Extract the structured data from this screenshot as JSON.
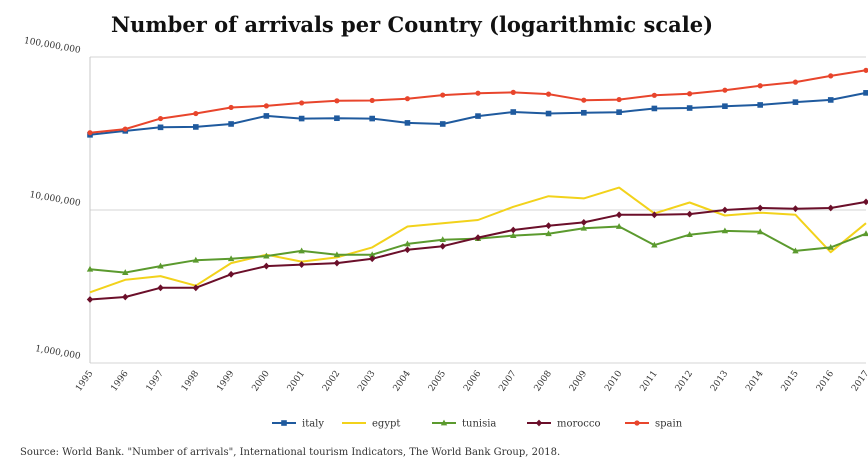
{
  "chart_data": {
    "type": "line",
    "title": "Number of arrivals per Country (logarithmic scale)",
    "source": "Source: World Bank. \"Number of arrivals\", International tourism Indicators, The World Bank Group, 2018.",
    "y_scale": "log",
    "ylim": [
      1000000,
      100000000
    ],
    "yticks": [
      {
        "value": 100000000,
        "label": "100,000,000"
      },
      {
        "value": 10000000,
        "label": "10,000,000"
      },
      {
        "value": 1000000,
        "label": "1,000,000"
      }
    ],
    "x": [
      "1995",
      "1996",
      "1997",
      "1998",
      "1999",
      "2000",
      "2001",
      "2002",
      "2003",
      "2004",
      "2005",
      "2006",
      "2007",
      "2008",
      "2009",
      "2010",
      "2011",
      "2012",
      "2013",
      "2014",
      "2015",
      "2016",
      "2017"
    ],
    "grid": "horizontal",
    "legend_position": "bottom",
    "series": [
      {
        "name": "italy",
        "color": "#1f5a9e",
        "marker": "square",
        "values": [
          31000000,
          32900000,
          34700000,
          34900000,
          36500000,
          41200000,
          39600000,
          39800000,
          39600000,
          37100000,
          36500000,
          41100000,
          43700000,
          42700000,
          43200000,
          43600000,
          46100000,
          46400000,
          47700000,
          48600000,
          50700000,
          52400000,
          58300000
        ]
      },
      {
        "name": "egypt",
        "color": "#f2d21b",
        "marker": "none",
        "values": [
          2900000,
          3500000,
          3700000,
          3200000,
          4500000,
          5100000,
          4600000,
          4900000,
          5700000,
          7800000,
          8200000,
          8600000,
          10500000,
          12300000,
          11900000,
          14000000,
          9500000,
          11200000,
          9200000,
          9600000,
          9300000,
          5300000,
          8200000
        ]
      },
      {
        "name": "tunisia",
        "color": "#5b9a2e",
        "marker": "triangle",
        "values": [
          4100000,
          3900000,
          4300000,
          4700000,
          4800000,
          5000000,
          5400000,
          5100000,
          5100000,
          6000000,
          6400000,
          6500000,
          6800000,
          7000000,
          7600000,
          7800000,
          5900000,
          6900000,
          7300000,
          7200000,
          5400000,
          5700000,
          7000000
        ]
      },
      {
        "name": "morocco",
        "color": "#6b0f2a",
        "marker": "diamond",
        "values": [
          2600000,
          2700000,
          3100000,
          3100000,
          3800000,
          4300000,
          4400000,
          4500000,
          4800000,
          5500000,
          5800000,
          6600000,
          7400000,
          7900000,
          8300000,
          9300000,
          9300000,
          9400000,
          10000000,
          10300000,
          10200000,
          10300000,
          11300000
        ]
      },
      {
        "name": "spain",
        "color": "#e8452c",
        "marker": "circle",
        "values": [
          32000000,
          33800000,
          39600000,
          42700000,
          46800000,
          47900000,
          50100000,
          51700000,
          52000000,
          53400000,
          56400000,
          58000000,
          58700000,
          57200000,
          52200000,
          52700000,
          56200000,
          57500000,
          60700000,
          64900000,
          68500000,
          75300000,
          81800000
        ]
      }
    ]
  }
}
